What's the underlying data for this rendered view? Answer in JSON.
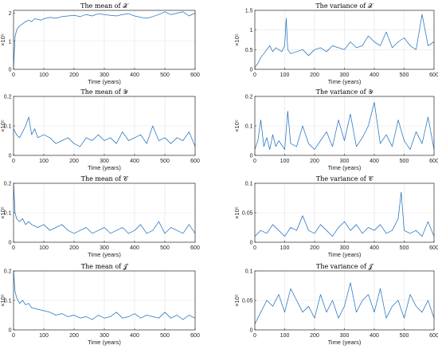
{
  "colors": {
    "series": "#2272be",
    "grid": "#e3e3e3",
    "axis": "#262626"
  },
  "chart_data": [
    {
      "id": "mean-x",
      "type": "line",
      "title": "The mean of 𝒳",
      "xlabel": "Time (years)",
      "ylabel": "×10⁵",
      "grid": true,
      "xlim": [
        0,
        600
      ],
      "ylim": [
        0,
        2.1
      ],
      "xticks": [
        0,
        100,
        200,
        300,
        400,
        500,
        600
      ],
      "xticklabels": [
        "0",
        "100",
        "200",
        "300",
        "400",
        "500",
        "600"
      ],
      "yticks": [
        0,
        1,
        2
      ],
      "yticklabels": [
        "0",
        "1",
        "2"
      ],
      "x": [
        0,
        5,
        10,
        20,
        30,
        40,
        50,
        60,
        70,
        80,
        90,
        100,
        120,
        140,
        160,
        180,
        200,
        220,
        240,
        260,
        280,
        300,
        320,
        340,
        360,
        380,
        400,
        420,
        440,
        460,
        480,
        500,
        520,
        540,
        560,
        580,
        600
      ],
      "y": [
        0.05,
        1.15,
        1.4,
        1.55,
        1.62,
        1.7,
        1.75,
        1.7,
        1.8,
        1.78,
        1.75,
        1.8,
        1.85,
        1.82,
        1.88,
        1.9,
        1.92,
        1.88,
        1.95,
        1.9,
        1.98,
        1.95,
        1.92,
        1.9,
        1.95,
        1.98,
        1.9,
        1.85,
        1.82,
        1.88,
        1.95,
        2.05,
        1.95,
        2.0,
        2.05,
        1.9,
        2.0
      ]
    },
    {
      "id": "var-x",
      "type": "line",
      "title": "The variance of 𝒳",
      "xlabel": "Time (years)",
      "ylabel": "×10⁵",
      "grid": true,
      "xlim": [
        0,
        600
      ],
      "ylim": [
        0,
        1.5
      ],
      "xticks": [
        0,
        100,
        200,
        300,
        400,
        500,
        600
      ],
      "xticklabels": [
        "0",
        "100",
        "200",
        "300",
        "400",
        "500",
        "600"
      ],
      "yticks": [
        0,
        0.5,
        1,
        1.5
      ],
      "yticklabels": [
        "0",
        "0.5",
        "1",
        "1.5"
      ],
      "x": [
        0,
        10,
        20,
        30,
        40,
        50,
        60,
        70,
        80,
        90,
        100,
        105,
        110,
        120,
        140,
        160,
        180,
        200,
        220,
        240,
        260,
        280,
        300,
        320,
        340,
        360,
        380,
        400,
        420,
        440,
        460,
        480,
        500,
        520,
        540,
        560,
        580,
        600
      ],
      "y": [
        0.05,
        0.15,
        0.3,
        0.4,
        0.5,
        0.6,
        0.45,
        0.55,
        0.5,
        0.45,
        0.6,
        1.3,
        0.5,
        0.4,
        0.45,
        0.5,
        0.35,
        0.5,
        0.55,
        0.45,
        0.6,
        0.55,
        0.5,
        0.7,
        0.55,
        0.6,
        0.85,
        0.7,
        0.6,
        0.95,
        0.55,
        0.7,
        0.8,
        0.6,
        0.5,
        1.4,
        0.6,
        0.7
      ]
    },
    {
      "id": "mean-y",
      "type": "line",
      "title": "The mean of 𝒴",
      "xlabel": "Time (years)",
      "ylabel": "×10⁵",
      "grid": true,
      "xlim": [
        0,
        600
      ],
      "ylim": [
        0,
        0.2
      ],
      "xticks": [
        0,
        100,
        200,
        300,
        400,
        500,
        600
      ],
      "xticklabels": [
        "0",
        "100",
        "200",
        "300",
        "400",
        "500",
        "600"
      ],
      "yticks": [
        0,
        0.1,
        0.2
      ],
      "yticklabels": [
        "0",
        "0.1",
        "0.2"
      ],
      "x": [
        0,
        10,
        20,
        30,
        40,
        50,
        60,
        70,
        80,
        100,
        120,
        140,
        160,
        180,
        200,
        220,
        240,
        260,
        280,
        300,
        320,
        340,
        360,
        380,
        400,
        420,
        440,
        460,
        480,
        500,
        520,
        540,
        560,
        580,
        600
      ],
      "y": [
        0.09,
        0.07,
        0.06,
        0.08,
        0.1,
        0.13,
        0.07,
        0.09,
        0.06,
        0.07,
        0.06,
        0.04,
        0.05,
        0.06,
        0.04,
        0.03,
        0.06,
        0.05,
        0.07,
        0.05,
        0.06,
        0.04,
        0.08,
        0.05,
        0.06,
        0.07,
        0.04,
        0.1,
        0.05,
        0.06,
        0.04,
        0.06,
        0.05,
        0.08,
        0.03
      ]
    },
    {
      "id": "var-y",
      "type": "line",
      "title": "The variance of 𝒴",
      "xlabel": "Time (years)",
      "ylabel": "×10⁵",
      "grid": true,
      "xlim": [
        0,
        600
      ],
      "ylim": [
        0,
        0.2
      ],
      "xticks": [
        0,
        100,
        200,
        300,
        400,
        500,
        600
      ],
      "xticklabels": [
        "0",
        "100",
        "200",
        "300",
        "400",
        "500",
        "600"
      ],
      "yticks": [
        0,
        0.1,
        0.2
      ],
      "yticklabels": [
        "0",
        "0.1",
        "0.2"
      ],
      "x": [
        0,
        10,
        20,
        30,
        40,
        50,
        60,
        70,
        80,
        100,
        110,
        120,
        140,
        160,
        180,
        200,
        220,
        240,
        260,
        280,
        300,
        320,
        340,
        360,
        380,
        400,
        420,
        440,
        460,
        480,
        500,
        520,
        540,
        560,
        580,
        600
      ],
      "y": [
        0.02,
        0.05,
        0.12,
        0.03,
        0.06,
        0.02,
        0.07,
        0.03,
        0.05,
        0.02,
        0.15,
        0.04,
        0.03,
        0.1,
        0.04,
        0.02,
        0.05,
        0.08,
        0.03,
        0.12,
        0.05,
        0.14,
        0.03,
        0.06,
        0.1,
        0.18,
        0.04,
        0.07,
        0.03,
        0.12,
        0.05,
        0.02,
        0.08,
        0.04,
        0.13,
        0.02
      ]
    },
    {
      "id": "mean-c",
      "type": "line",
      "title": "The mean of 𝒞",
      "xlabel": "Time (years)",
      "ylabel": "×10⁵",
      "grid": true,
      "xlim": [
        0,
        600
      ],
      "ylim": [
        0,
        0.2
      ],
      "xticks": [
        0,
        100,
        200,
        300,
        400,
        500,
        600
      ],
      "xticklabels": [
        "0",
        "100",
        "200",
        "300",
        "400",
        "500",
        "600"
      ],
      "yticks": [
        0,
        0.1,
        0.2
      ],
      "yticklabels": [
        "0",
        "0.1",
        "0.2"
      ],
      "x": [
        0,
        5,
        10,
        20,
        30,
        40,
        50,
        60,
        80,
        100,
        120,
        140,
        160,
        180,
        200,
        220,
        240,
        260,
        280,
        300,
        320,
        340,
        360,
        380,
        400,
        420,
        440,
        460,
        480,
        500,
        520,
        540,
        560,
        580,
        600
      ],
      "y": [
        0.2,
        0.1,
        0.08,
        0.07,
        0.08,
        0.06,
        0.07,
        0.06,
        0.05,
        0.06,
        0.04,
        0.05,
        0.06,
        0.04,
        0.03,
        0.04,
        0.05,
        0.03,
        0.04,
        0.05,
        0.03,
        0.04,
        0.05,
        0.03,
        0.04,
        0.06,
        0.03,
        0.04,
        0.07,
        0.03,
        0.05,
        0.04,
        0.03,
        0.06,
        0.03
      ]
    },
    {
      "id": "var-c",
      "type": "line",
      "title": "The variance of 𝒞",
      "xlabel": "Time (years)",
      "ylabel": "×10⁵",
      "grid": true,
      "xlim": [
        0,
        600
      ],
      "ylim": [
        0,
        0.1
      ],
      "xticks": [
        0,
        100,
        200,
        300,
        400,
        500,
        600
      ],
      "xticklabels": [
        "0",
        "100",
        "200",
        "300",
        "400",
        "500",
        "600"
      ],
      "yticks": [
        0,
        0.05,
        0.1
      ],
      "yticklabels": [
        "0",
        "0.05",
        "0.1"
      ],
      "x": [
        0,
        20,
        40,
        60,
        80,
        100,
        120,
        140,
        160,
        180,
        200,
        220,
        240,
        260,
        280,
        300,
        320,
        340,
        360,
        380,
        400,
        420,
        440,
        460,
        480,
        490,
        500,
        520,
        540,
        560,
        580,
        600
      ],
      "y": [
        0.01,
        0.02,
        0.015,
        0.03,
        0.02,
        0.01,
        0.025,
        0.02,
        0.045,
        0.02,
        0.015,
        0.03,
        0.02,
        0.01,
        0.025,
        0.035,
        0.02,
        0.03,
        0.015,
        0.025,
        0.02,
        0.03,
        0.015,
        0.02,
        0.04,
        0.085,
        0.02,
        0.015,
        0.02,
        0.01,
        0.035,
        0.01
      ]
    },
    {
      "id": "mean-j",
      "type": "line",
      "title": "The mean of 𝒥",
      "xlabel": "Time (years)",
      "ylabel": "×10⁵",
      "grid": true,
      "xlim": [
        0,
        600
      ],
      "ylim": [
        0,
        0.2
      ],
      "xticks": [
        0,
        100,
        200,
        300,
        400,
        500,
        600
      ],
      "xticklabels": [
        "0",
        "100",
        "200",
        "300",
        "400",
        "500",
        "600"
      ],
      "yticks": [
        0,
        0.1,
        0.2
      ],
      "yticklabels": [
        "0",
        "0.1",
        "0.2"
      ],
      "x": [
        0,
        5,
        10,
        20,
        30,
        40,
        50,
        60,
        80,
        100,
        120,
        140,
        160,
        180,
        200,
        220,
        240,
        260,
        280,
        300,
        320,
        340,
        360,
        380,
        400,
        420,
        440,
        460,
        480,
        500,
        520,
        540,
        560,
        580,
        600
      ],
      "y": [
        0.2,
        0.13,
        0.11,
        0.09,
        0.1,
        0.085,
        0.09,
        0.075,
        0.07,
        0.065,
        0.06,
        0.05,
        0.055,
        0.045,
        0.05,
        0.04,
        0.045,
        0.035,
        0.05,
        0.04,
        0.045,
        0.06,
        0.04,
        0.045,
        0.055,
        0.04,
        0.05,
        0.045,
        0.04,
        0.06,
        0.04,
        0.05,
        0.035,
        0.05,
        0.04
      ]
    },
    {
      "id": "var-j",
      "type": "line",
      "title": "The variance of 𝒥",
      "xlabel": "Time (years)",
      "ylabel": "×10⁵",
      "grid": true,
      "xlim": [
        0,
        600
      ],
      "ylim": [
        0,
        0.1
      ],
      "xticks": [
        0,
        100,
        200,
        300,
        400,
        500,
        600
      ],
      "xticklabels": [
        "0",
        "100",
        "200",
        "300",
        "400",
        "500",
        "600"
      ],
      "yticks": [
        0,
        0.05,
        0.1
      ],
      "yticklabels": [
        "0",
        "0.05",
        "0.1"
      ],
      "x": [
        0,
        20,
        40,
        60,
        80,
        100,
        120,
        140,
        160,
        180,
        200,
        220,
        240,
        260,
        280,
        300,
        320,
        340,
        360,
        380,
        400,
        420,
        440,
        460,
        480,
        500,
        520,
        540,
        560,
        580,
        600
      ],
      "y": [
        0.01,
        0.03,
        0.05,
        0.04,
        0.06,
        0.03,
        0.07,
        0.05,
        0.03,
        0.04,
        0.02,
        0.06,
        0.03,
        0.05,
        0.02,
        0.04,
        0.08,
        0.03,
        0.05,
        0.06,
        0.03,
        0.07,
        0.02,
        0.04,
        0.05,
        0.02,
        0.06,
        0.04,
        0.03,
        0.05,
        0.02
      ]
    }
  ]
}
